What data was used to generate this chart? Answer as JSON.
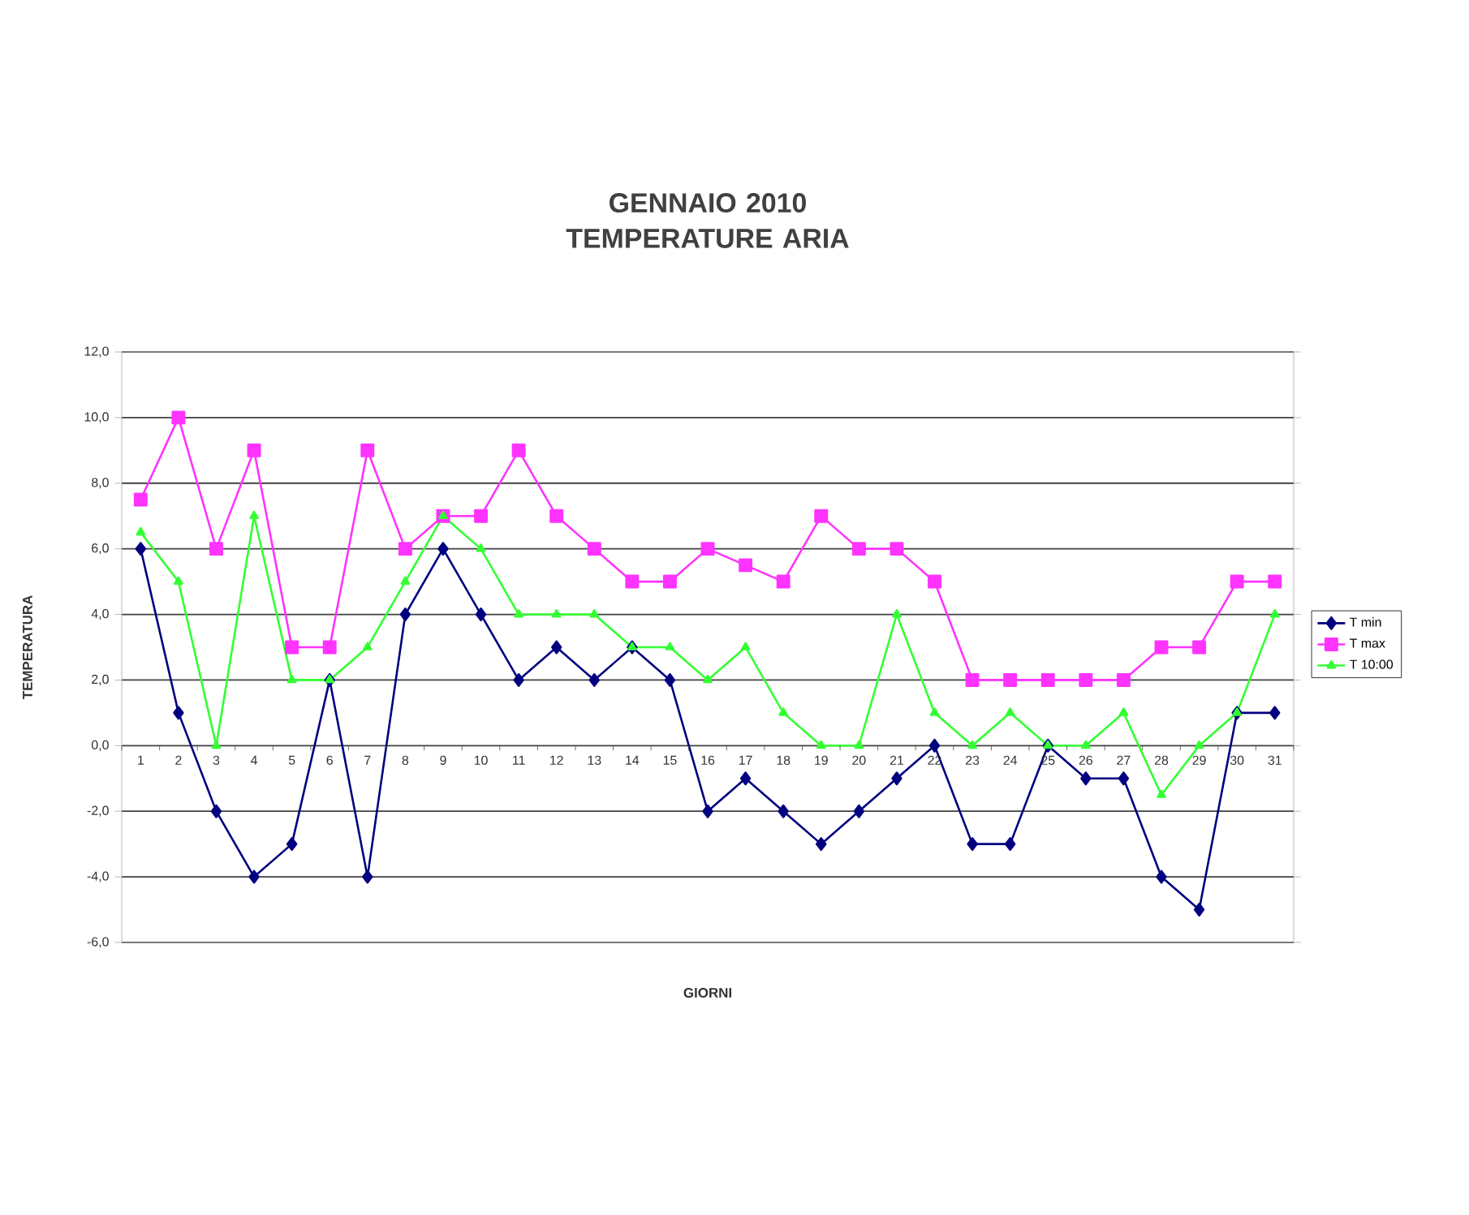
{
  "chart_data": {
    "type": "line",
    "title": "GENNAIO 2010\nTEMPERATURE ARIA",
    "xlabel": "GIORNI",
    "ylabel": "TEMPERATURA",
    "categories": [
      "1",
      "2",
      "3",
      "4",
      "5",
      "6",
      "7",
      "8",
      "9",
      "10",
      "11",
      "12",
      "13",
      "14",
      "15",
      "16",
      "17",
      "18",
      "19",
      "20",
      "21",
      "22",
      "23",
      "24",
      "25",
      "26",
      "27",
      "28",
      "29",
      "30",
      "31"
    ],
    "series": [
      {
        "name": "T min",
        "color": "#000080",
        "marker": "diamond",
        "values": [
          6,
          1,
          -2,
          -4,
          -3,
          2,
          -4,
          4,
          6,
          4,
          2,
          3,
          2,
          3,
          2,
          -2,
          -1,
          -2,
          -3,
          -2,
          -1,
          0,
          -3,
          -3,
          0,
          -1,
          -1,
          -4,
          -5,
          1,
          1
        ]
      },
      {
        "name": "T max",
        "color": "#ff33ff",
        "marker": "square",
        "values": [
          7.5,
          10,
          6,
          9,
          3,
          3,
          9,
          6,
          7,
          7,
          9,
          7,
          6,
          5,
          5,
          6,
          5.5,
          5,
          7,
          6,
          6,
          5,
          2,
          2,
          2,
          2,
          2,
          3,
          3,
          5,
          5
        ]
      },
      {
        "name": "T 10:00",
        "color": "#33ff33",
        "marker": "triangle",
        "values": [
          6.5,
          5,
          0,
          7,
          2,
          2,
          3,
          5,
          7,
          6,
          4,
          4,
          4,
          3,
          3,
          2,
          3,
          1,
          0,
          0,
          4,
          1,
          0,
          1,
          0,
          0,
          1,
          -1.5,
          0,
          1,
          4
        ]
      }
    ],
    "ylim": [
      -6,
      12
    ],
    "yticks": [
      {
        "value": -6,
        "label": "-6,0"
      },
      {
        "value": -4,
        "label": "-4,0"
      },
      {
        "value": -2,
        "label": "-2,0"
      },
      {
        "value": 0,
        "label": "0,0"
      },
      {
        "value": 2,
        "label": "2,0"
      },
      {
        "value": 4,
        "label": "4,0"
      },
      {
        "value": 6,
        "label": "6,0"
      },
      {
        "value": 8,
        "label": "8,0"
      },
      {
        "value": 10,
        "label": "10,0"
      },
      {
        "value": 12,
        "label": "12,0"
      }
    ],
    "grid": "y",
    "legend": "right",
    "line_style": "solid"
  }
}
